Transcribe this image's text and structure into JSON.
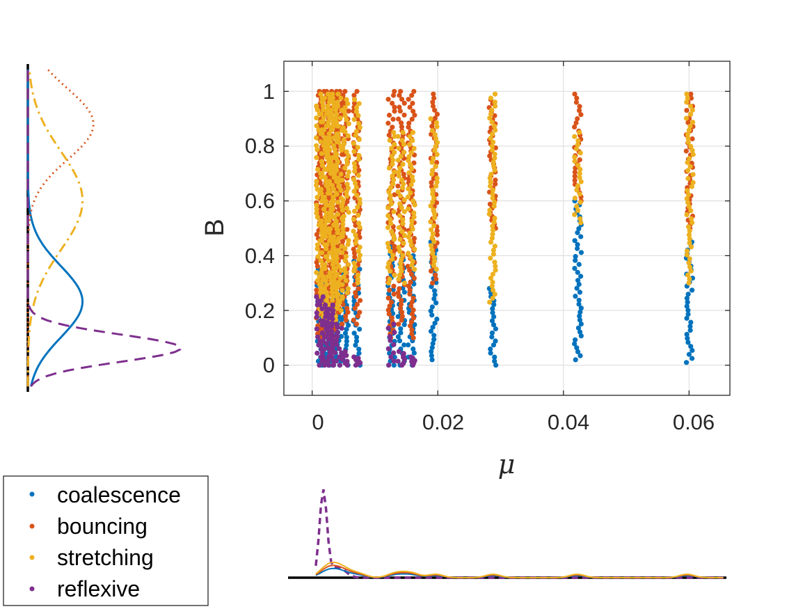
{
  "colors": {
    "coalescence": "#0072BD",
    "bouncing": "#D95319",
    "stretching": "#EDB120",
    "reflexive": "#7E2F8E",
    "axis": "#262626",
    "grid": "#e0e0e0"
  },
  "chart_data": {
    "type": "scatter",
    "title": "",
    "xlabel": "μ",
    "ylabel": "B",
    "xlim": [
      -0.0045,
      0.0665
    ],
    "ylim": [
      -0.11,
      1.11
    ],
    "xticks": [
      0,
      0.02,
      0.04,
      0.06
    ],
    "xtick_labels": [
      "0",
      "0.02",
      "0.04",
      "0.06"
    ],
    "yticks": [
      0,
      0.2,
      0.4,
      0.6,
      0.8,
      1
    ],
    "ytick_labels": [
      "0",
      "0.2",
      "0.4",
      "0.6",
      "0.8",
      "1"
    ],
    "grid": true,
    "legend_position": "bottom-left",
    "mu_values": [
      0.0012,
      0.0018,
      0.0024,
      0.003,
      0.0036,
      0.0043,
      0.0053,
      0.0071,
      0.0126,
      0.0142,
      0.0158,
      0.0194,
      0.0287,
      0.0423,
      0.0601
    ],
    "series": [
      {
        "name": "coalescence",
        "B_ranges_per_mu": [
          [
            0.0,
            0.35
          ],
          [
            0.0,
            0.3
          ],
          [
            0.0,
            0.25
          ],
          [
            0.0,
            0.25
          ],
          [
            0.0,
            0.25
          ],
          [
            0.0,
            0.3
          ],
          [
            0.0,
            0.35
          ],
          [
            0.0,
            0.38
          ],
          [
            0.0,
            0.45
          ],
          [
            0.0,
            0.4
          ],
          [
            0.0,
            0.4
          ],
          [
            0.02,
            0.45
          ],
          [
            0.0,
            0.28
          ],
          [
            0.02,
            0.6
          ],
          [
            0.01,
            0.45
          ]
        ]
      },
      {
        "name": "bouncing",
        "B_ranges_per_mu": [
          [
            0.1,
            1.0
          ],
          [
            0.1,
            1.0
          ],
          [
            0.1,
            1.0
          ],
          [
            0.1,
            1.0
          ],
          [
            0.1,
            1.0
          ],
          [
            0.15,
            1.0
          ],
          [
            0.15,
            1.0
          ],
          [
            0.15,
            1.0
          ],
          [
            0.1,
            1.0
          ],
          [
            0.15,
            1.0
          ],
          [
            0.1,
            1.0
          ],
          [
            0.3,
            0.99
          ],
          [
            0.5,
            0.97
          ],
          [
            0.6,
            0.99
          ],
          [
            0.5,
            0.99
          ]
        ]
      },
      {
        "name": "stretching",
        "B_ranges_per_mu": [
          [
            0.15,
            0.99
          ],
          [
            0.15,
            0.99
          ],
          [
            0.15,
            0.99
          ],
          [
            0.15,
            0.99
          ],
          [
            0.15,
            0.99
          ],
          [
            0.2,
            0.99
          ],
          [
            0.25,
            0.97
          ],
          [
            0.3,
            0.97
          ],
          [
            0.3,
            0.85
          ],
          [
            0.3,
            0.85
          ],
          [
            0.35,
            0.85
          ],
          [
            0.35,
            0.9
          ],
          [
            0.23,
            0.99
          ],
          [
            0.52,
            0.85
          ],
          [
            0.3,
            0.99
          ]
        ]
      },
      {
        "name": "reflexive",
        "B_ranges_per_mu": [
          [
            0.0,
            0.25
          ],
          [
            0.0,
            0.25
          ],
          [
            0.0,
            0.22
          ],
          [
            0.0,
            0.22
          ],
          [
            0.0,
            0.2
          ],
          [
            0.0,
            0.15
          ],
          [
            0.0,
            0.05
          ],
          [
            0.0,
            0.03
          ],
          [
            0.0,
            0.15
          ],
          [
            0.0,
            0.05
          ],
          [
            0.0,
            0.03
          ],
          [
            null,
            null
          ],
          [
            null,
            null
          ],
          [
            null,
            null
          ],
          [
            null,
            null
          ]
        ]
      }
    ],
    "marginal_B_density": {
      "orientation": "left",
      "B_range": [
        -0.1,
        1.1
      ],
      "series": [
        {
          "name": "coalescence",
          "style": "solid",
          "peak_B": 0.23,
          "peak_density": 1.0
        },
        {
          "name": "bouncing",
          "style": "dotted",
          "peak_B": 0.88,
          "peak_density": 1.2
        },
        {
          "name": "stretching",
          "style": "dashdot",
          "peak_B": 0.6,
          "peak_density": 1.0
        },
        {
          "name": "reflexive",
          "style": "dashed",
          "peak_B": 0.06,
          "peak_density": 2.8
        }
      ]
    },
    "marginal_mu_density": {
      "orientation": "bottom",
      "series": [
        {
          "name": "reflexive",
          "style": "dashed",
          "peak_mu": 0.0012,
          "peak_density": 1.0
        }
      ]
    }
  },
  "legend": {
    "entries": [
      {
        "label": "coalescence",
        "series": "coalescence"
      },
      {
        "label": "bouncing",
        "series": "bouncing"
      },
      {
        "label": "stretching",
        "series": "stretching"
      },
      {
        "label": "reflexive",
        "series": "reflexive"
      }
    ]
  }
}
